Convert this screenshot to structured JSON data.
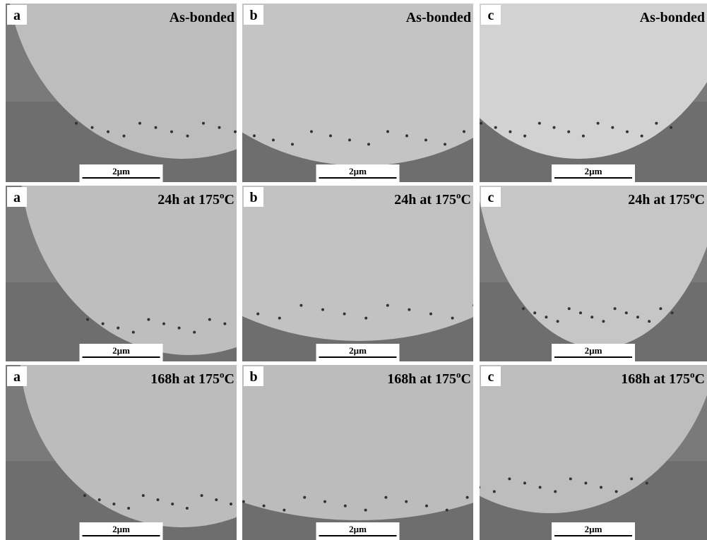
{
  "rows": [
    {
      "panels": [
        {
          "label": "a",
          "condition": {
            "text": "As-bonded"
          },
          "scale": "2µm"
        },
        {
          "label": "b",
          "condition": {
            "text": "As-bonded"
          },
          "scale": "2µm"
        },
        {
          "label": "c",
          "condition": {
            "text": "As-bonded"
          },
          "scale": "2µm"
        }
      ]
    },
    {
      "panels": [
        {
          "label": "a",
          "condition": {
            "text": "24h at 175",
            "sup": "o",
            "tail": "C"
          },
          "scale": "2µm"
        },
        {
          "label": "b",
          "condition": {
            "text": "24h at 175",
            "sup": "o",
            "tail": "C"
          },
          "scale": "2µm"
        },
        {
          "label": "c",
          "condition": {
            "text": "24h at 175",
            "sup": "o",
            "tail": "C"
          },
          "scale": "2µm"
        }
      ]
    },
    {
      "panels": [
        {
          "label": "a",
          "condition": {
            "text": "168h at 175",
            "sup": "o",
            "tail": "C"
          },
          "scale": "2µm"
        },
        {
          "label": "b",
          "condition": {
            "text": "168h at 175",
            "sup": "o",
            "tail": "C"
          },
          "scale": "2µm"
        },
        {
          "label": "c",
          "condition": {
            "text": "168h at 175",
            "sup": "o",
            "tail": "C"
          },
          "scale": "2µm"
        }
      ]
    }
  ]
}
